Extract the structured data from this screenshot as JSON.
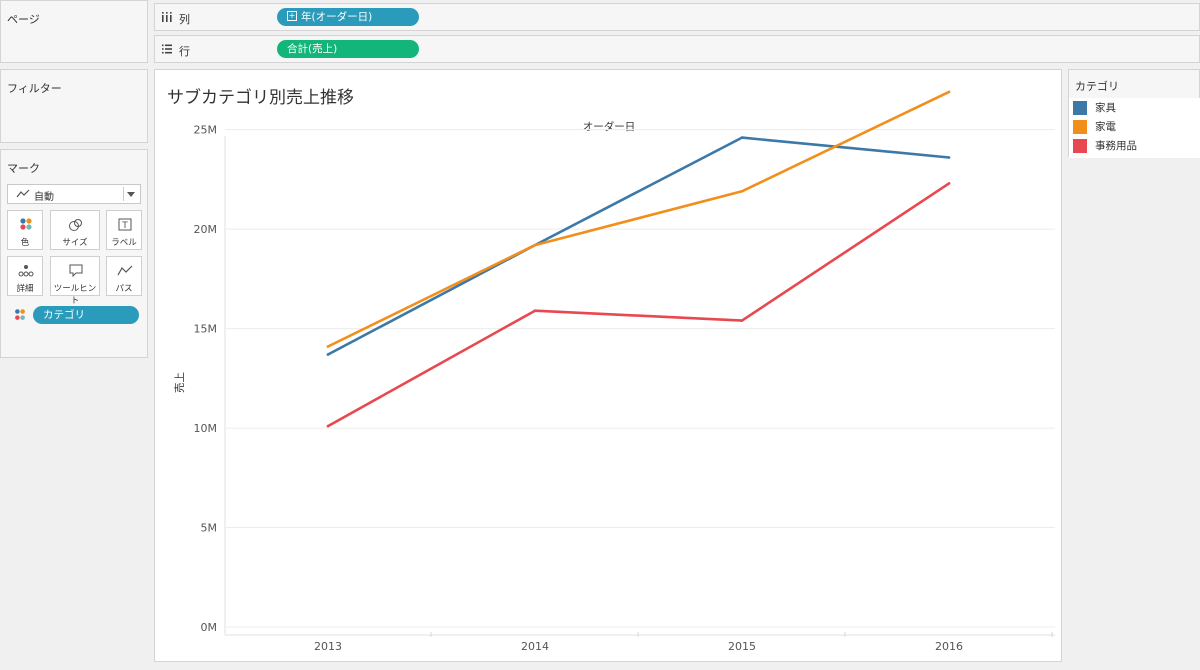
{
  "shelves": {
    "pages_title": "ページ",
    "columns_label": "列",
    "columns_pill": "年(オーダー日)",
    "rows_label": "行",
    "rows_pill": "合計(売上)"
  },
  "filters_title": "フィルター",
  "marks": {
    "title": "マーク",
    "mark_type": "自動",
    "buttons": [
      "色",
      "サイズ",
      "ラベル",
      "詳細",
      "ツールヒント",
      "パス"
    ],
    "color_field": "カテゴリ"
  },
  "legend": {
    "title": "カテゴリ",
    "items": [
      {
        "name": "家具",
        "color": "#3c78a8"
      },
      {
        "name": "家電",
        "color": "#f28e1c"
      },
      {
        "name": "事務用品",
        "color": "#e8484f"
      }
    ]
  },
  "chart_data": {
    "type": "line",
    "title": "サブカテゴリ別売上推移",
    "header": "オーダー日",
    "xlabel": "",
    "ylabel": "売上",
    "categories": [
      "2013",
      "2014",
      "2015",
      "2016"
    ],
    "yticks": [
      "0M",
      "5M",
      "10M",
      "15M",
      "20M",
      "25M"
    ],
    "ylim": [
      0,
      28000000
    ],
    "grid": true,
    "legend_position": "right",
    "series": [
      {
        "name": "家具",
        "color": "#3c78a8",
        "values": [
          13700000,
          19200000,
          24600000,
          23600000
        ]
      },
      {
        "name": "家電",
        "color": "#f28e1c",
        "values": [
          14100000,
          19200000,
          21900000,
          26900000
        ]
      },
      {
        "name": "事務用品",
        "color": "#e8484f",
        "values": [
          10100000,
          15900000,
          15400000,
          22300000
        ]
      }
    ]
  }
}
